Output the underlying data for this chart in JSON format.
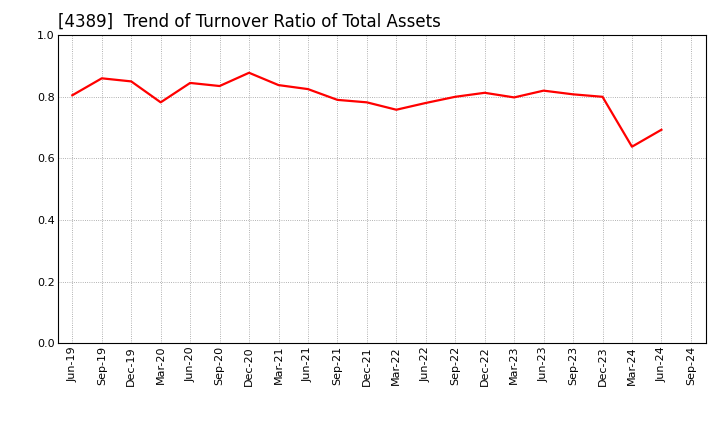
{
  "title": "[4389]  Trend of Turnover Ratio of Total Assets",
  "line_color": "#FF0000",
  "background_color": "#FFFFFF",
  "grid_color": "#999999",
  "ylim": [
    0.0,
    1.0
  ],
  "yticks": [
    0.0,
    0.2,
    0.4,
    0.6,
    0.8,
    1.0
  ],
  "labels": [
    "Jun-19",
    "Sep-19",
    "Dec-19",
    "Mar-20",
    "Jun-20",
    "Sep-20",
    "Dec-20",
    "Mar-21",
    "Jun-21",
    "Sep-21",
    "Dec-21",
    "Mar-22",
    "Jun-22",
    "Sep-22",
    "Dec-22",
    "Mar-23",
    "Jun-23",
    "Sep-23",
    "Dec-23",
    "Mar-24",
    "Jun-24",
    "Sep-24"
  ],
  "values": [
    0.805,
    0.86,
    0.85,
    0.782,
    0.845,
    0.835,
    0.878,
    0.838,
    0.825,
    0.79,
    0.782,
    0.758,
    0.78,
    0.8,
    0.813,
    0.798,
    0.82,
    0.808,
    0.8,
    0.638,
    0.693,
    null
  ],
  "title_fontsize": 12,
  "tick_fontsize": 8,
  "line_width": 1.6
}
